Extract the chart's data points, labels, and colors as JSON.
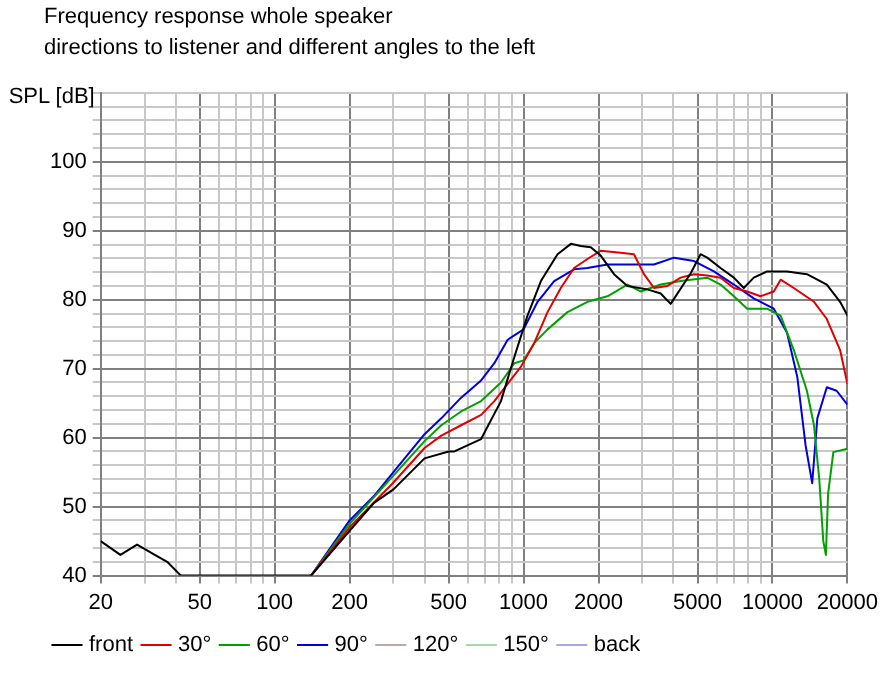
{
  "chart_data": {
    "type": "line",
    "title": "Frequency response whole speaker",
    "subtitle": "directions to listener and different angles to the left",
    "ylabel": "SPL [dB]",
    "xlim": [
      20,
      20000
    ],
    "ylim": [
      40,
      110
    ],
    "log": "x",
    "grid": true,
    "legend": "bottom",
    "marker": "none",
    "line_style": "solid",
    "xticks": [
      20,
      {
        "value": 30,
        "label": null
      },
      {
        "value": 40,
        "label": null
      },
      50,
      {
        "value": 60,
        "label": null
      },
      {
        "value": 70,
        "label": null
      },
      {
        "value": 80,
        "label": null
      },
      {
        "value": 90,
        "label": null
      },
      100,
      200,
      {
        "value": 300,
        "label": null
      },
      {
        "value": 400,
        "label": null
      },
      500,
      {
        "value": 600,
        "label": null
      },
      {
        "value": 700,
        "label": null
      },
      {
        "value": 800,
        "label": null
      },
      {
        "value": 900,
        "label": null
      },
      1000,
      2000,
      {
        "value": 3000,
        "label": null
      },
      {
        "value": 4000,
        "label": null
      },
      5000,
      {
        "value": 6000,
        "label": null
      },
      {
        "value": 7000,
        "label": null
      },
      {
        "value": 8000,
        "label": null
      },
      {
        "value": 9000,
        "label": null
      },
      10000,
      20000
    ],
    "yticks": [
      40,
      {
        "value": 42,
        "label": null
      },
      {
        "value": 44,
        "label": null
      },
      {
        "value": 46,
        "label": null
      },
      {
        "value": 48,
        "label": null
      },
      50,
      {
        "value": 52,
        "label": null
      },
      {
        "value": 54,
        "label": null
      },
      {
        "value": 56,
        "label": null
      },
      {
        "value": 58,
        "label": null
      },
      60,
      {
        "value": 62,
        "label": null
      },
      {
        "value": 64,
        "label": null
      },
      {
        "value": 66,
        "label": null
      },
      {
        "value": 68,
        "label": null
      },
      70,
      {
        "value": 72,
        "label": null
      },
      {
        "value": 74,
        "label": null
      },
      {
        "value": 76,
        "label": null
      },
      {
        "value": 78,
        "label": null
      },
      80,
      {
        "value": 82,
        "label": null
      },
      {
        "value": 84,
        "label": null
      },
      {
        "value": 86,
        "label": null
      },
      {
        "value": 88,
        "label": null
      },
      90,
      {
        "value": 92,
        "label": null
      },
      {
        "value": 94,
        "label": null
      },
      {
        "value": 96,
        "label": null
      },
      {
        "value": 98,
        "label": null
      },
      100,
      {
        "value": 102,
        "label": null
      },
      {
        "value": 104,
        "label": null
      },
      {
        "value": 106,
        "label": null
      },
      {
        "value": 108,
        "label": null
      },
      {
        "value": 110,
        "label": null
      }
    ],
    "series": [
      {
        "name": "front",
        "color": "#000000",
        "x": [
          20,
          24,
          28,
          33,
          37,
          42,
          140,
          200,
          250,
          300,
          400,
          500,
          527,
          675,
          811,
          918,
          1037,
          1174,
          1369,
          1549,
          1698,
          1862,
          2041,
          2309,
          2612,
          3142,
          3555,
          3899,
          4688,
          5141,
          5468,
          6185,
          6996,
          7669,
          8410,
          9510,
          11440,
          13750,
          16530,
          18690,
          20000
        ],
        "values": [
          45,
          43,
          44.5,
          43,
          42,
          40,
          40,
          46.5,
          50.5,
          52.5,
          57,
          58,
          58,
          59.8,
          65.3,
          71.7,
          77.7,
          82.7,
          86.6,
          88.1,
          87.8,
          87.6,
          86.4,
          83.7,
          82,
          81.5,
          80.9,
          79.4,
          83.8,
          86.6,
          86.1,
          84.6,
          83.2,
          81.7,
          83.2,
          84.1,
          84.1,
          83.7,
          82.2,
          79.7,
          77.7
        ]
      },
      {
        "name": "30°",
        "color": "#e00000",
        "x": [
          140,
          200,
          300,
          400,
          467,
          561,
          675,
          763,
          863,
          976,
          1103,
          1248,
          1411,
          1596,
          1805,
          2041,
          2453,
          2776,
          3046,
          3341,
          3781,
          4277,
          4838,
          5468,
          6185,
          6996,
          7913,
          8949,
          10120,
          10780,
          12180,
          14680,
          16530,
          18690,
          20000
        ],
        "values": [
          40,
          47,
          53.5,
          58.5,
          60.3,
          61.8,
          63.3,
          65.3,
          67.8,
          70.3,
          73.7,
          78.2,
          81.7,
          84.6,
          85.9,
          87.1,
          86.8,
          86.6,
          83.7,
          81.7,
          82,
          83.2,
          83.7,
          83.5,
          83.2,
          81.7,
          81.2,
          80.5,
          81.2,
          82.9,
          81.7,
          79.7,
          77.2,
          72.7,
          67.8
        ]
      },
      {
        "name": "60°",
        "color": "#00a000",
        "x": [
          140,
          200,
          300,
          400,
          467,
          561,
          675,
          811,
          918,
          1000,
          1103,
          1248,
          1501,
          1805,
          2172,
          2612,
          2952,
          3555,
          4277,
          5468,
          6185,
          6996,
          7913,
          9510,
          10780,
          12180,
          13750,
          14680,
          15420,
          16000,
          16390,
          16730,
          17560,
          20000
        ],
        "values": [
          40,
          47.5,
          54.5,
          59.5,
          61.8,
          63.8,
          65.3,
          68,
          70.8,
          71.2,
          73.7,
          75.7,
          78.2,
          79.7,
          80.5,
          82.2,
          81.2,
          82.2,
          82.7,
          83.2,
          82.2,
          80.5,
          78.7,
          78.7,
          77.7,
          72.7,
          66.8,
          61.8,
          53.9,
          45,
          43,
          51.9,
          57.9,
          58.4
        ]
      },
      {
        "name": "90°",
        "color": "#0000e0",
        "x": [
          140,
          200,
          250,
          300,
          400,
          467,
          561,
          675,
          763,
          863,
          1000,
          1138,
          1327,
          1596,
          1805,
          2172,
          2612,
          3341,
          4022,
          4838,
          5816,
          6996,
          8410,
          10120,
          11440,
          12580,
          13580,
          14440,
          15140,
          16530,
          18100,
          20000
        ],
        "values": [
          40,
          48,
          51.5,
          55,
          60.5,
          62.8,
          65.8,
          68.3,
          70.8,
          74.2,
          75.7,
          79.7,
          82.7,
          84.4,
          84.6,
          85.1,
          85.1,
          85.1,
          86.1,
          85.6,
          84.1,
          82.2,
          80.2,
          78.7,
          75.2,
          68.8,
          58.9,
          53.4,
          62.8,
          67.3,
          66.8,
          64.8
        ]
      },
      {
        "name": "120°",
        "color": "#c0a8a8"
      },
      {
        "name": "150°",
        "color": "#a8d8a8"
      },
      {
        "name": "back",
        "color": "#a8a8e0"
      }
    ]
  }
}
